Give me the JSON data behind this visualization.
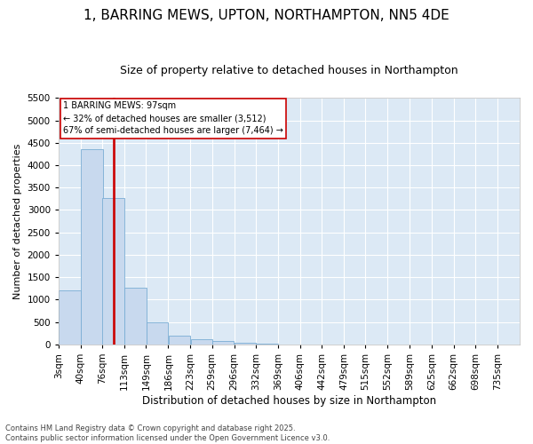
{
  "title": "1, BARRING MEWS, UPTON, NORTHAMPTON, NN5 4DE",
  "subtitle": "Size of property relative to detached houses in Northampton",
  "xlabel": "Distribution of detached houses by size in Northampton",
  "ylabel": "Number of detached properties",
  "footer_line1": "Contains HM Land Registry data © Crown copyright and database right 2025.",
  "footer_line2": "Contains public sector information licensed under the Open Government Licence v3.0.",
  "annotation_line1": "1 BARRING MEWS: 97sqm",
  "annotation_line2": "← 32% of detached houses are smaller (3,512)",
  "annotation_line3": "67% of semi-detached houses are larger (7,464) →",
  "bar_color": "#c8d9ee",
  "bar_edge_color": "#7aadd4",
  "vline_color": "#cc0000",
  "vline_x": 3,
  "annotation_box_edgecolor": "#cc0000",
  "plot_bg_color": "#dce9f5",
  "categories": [
    "3sqm",
    "40sqm",
    "76sqm",
    "113sqm",
    "149sqm",
    "186sqm",
    "223sqm",
    "259sqm",
    "296sqm",
    "332sqm",
    "369sqm",
    "406sqm",
    "442sqm",
    "479sqm",
    "515sqm",
    "552sqm",
    "589sqm",
    "625sqm",
    "662sqm",
    "698sqm",
    "735sqm"
  ],
  "bin_left_edges": [
    3,
    40,
    76,
    113,
    149,
    186,
    223,
    259,
    296,
    332,
    369,
    406,
    442,
    479,
    515,
    552,
    589,
    625,
    662,
    698,
    735
  ],
  "bin_width": 37,
  "values": [
    1200,
    4350,
    3270,
    1260,
    490,
    195,
    115,
    75,
    45,
    10,
    5,
    2,
    1,
    0,
    0,
    0,
    0,
    0,
    0,
    0,
    0
  ],
  "ylim": [
    0,
    5500
  ],
  "yticks": [
    0,
    500,
    1000,
    1500,
    2000,
    2500,
    3000,
    3500,
    4000,
    4500,
    5000,
    5500
  ],
  "grid_color": "#ffffff",
  "title_fontsize": 11,
  "subtitle_fontsize": 9,
  "xlabel_fontsize": 8.5,
  "ylabel_fontsize": 8,
  "tick_fontsize": 7.5,
  "annotation_fontsize": 7,
  "footer_fontsize": 6
}
